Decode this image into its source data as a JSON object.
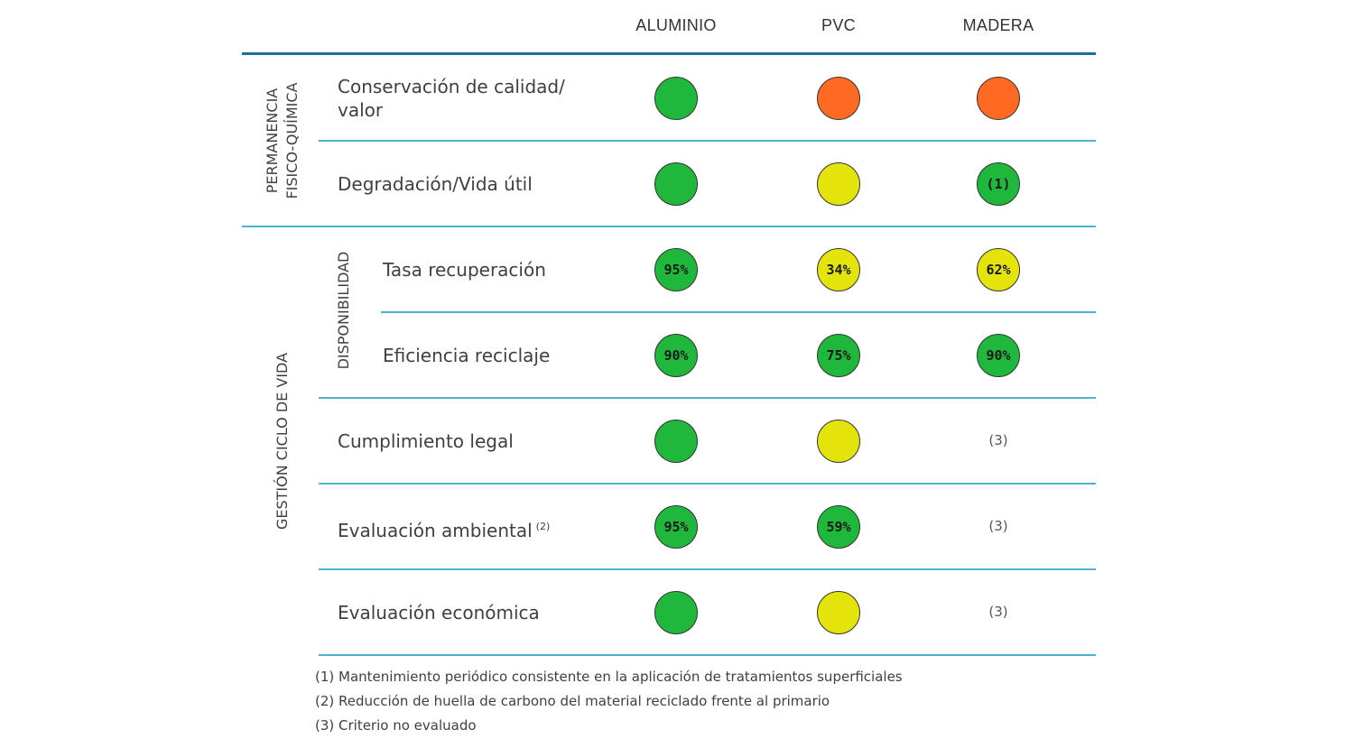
{
  "chart_data": {
    "type": "table",
    "columns": [
      "ALUMINIO",
      "PVC",
      "MADERA"
    ],
    "groups": [
      {
        "label_lines": [
          "PERMANENCIA",
          "FISICO-QUÍMICA"
        ],
        "subgroups": [
          {
            "label": "",
            "rows": [
              {
                "label_lines": [
                  "Conservación de calidad/",
                  "valor"
                ],
                "sup": "",
                "cells": [
                  {
                    "color": "green",
                    "text": ""
                  },
                  {
                    "color": "orange",
                    "text": ""
                  },
                  {
                    "color": "orange",
                    "text": ""
                  }
                ]
              },
              {
                "label_lines": [
                  "Degradación/Vida útil"
                ],
                "sup": "",
                "cells": [
                  {
                    "color": "green",
                    "text": ""
                  },
                  {
                    "color": "yellow",
                    "text": ""
                  },
                  {
                    "color": "green",
                    "text": "(1)"
                  }
                ]
              }
            ]
          }
        ]
      },
      {
        "label_lines": [
          "GESTIÓN CICLO DE VIDA"
        ],
        "subgroups": [
          {
            "label": "DISPONIBILIDAD",
            "rows": [
              {
                "label_lines": [
                  "Tasa recuperación"
                ],
                "sup": "",
                "cells": [
                  {
                    "color": "green",
                    "text": "95%"
                  },
                  {
                    "color": "yellow",
                    "text": "34%"
                  },
                  {
                    "color": "yellow",
                    "text": "62%"
                  }
                ]
              },
              {
                "label_lines": [
                  "Eficiencia reciclaje"
                ],
                "sup": "",
                "cells": [
                  {
                    "color": "green",
                    "text": "90%"
                  },
                  {
                    "color": "green",
                    "text": "75%"
                  },
                  {
                    "color": "green",
                    "text": "90%"
                  }
                ]
              }
            ]
          },
          {
            "label": "",
            "rows": [
              {
                "label_lines": [
                  "Cumplimiento legal"
                ],
                "sup": "",
                "cells": [
                  {
                    "color": "green",
                    "text": ""
                  },
                  {
                    "color": "yellow",
                    "text": ""
                  },
                  {
                    "color": "none",
                    "text": "(3)"
                  }
                ]
              },
              {
                "label_lines": [
                  "Evaluación ambiental"
                ],
                "sup": "(2)",
                "cells": [
                  {
                    "color": "green",
                    "text": "95%"
                  },
                  {
                    "color": "green",
                    "text": "59%"
                  },
                  {
                    "color": "none",
                    "text": "(3)"
                  }
                ]
              },
              {
                "label_lines": [
                  "Evaluación económica"
                ],
                "sup": "",
                "cells": [
                  {
                    "color": "green",
                    "text": ""
                  },
                  {
                    "color": "yellow",
                    "text": ""
                  },
                  {
                    "color": "none",
                    "text": "(3)"
                  }
                ]
              }
            ]
          }
        ]
      }
    ],
    "footnotes": [
      "(1) Mantenimiento periódico consistente en la aplicación de tratamientos superficiales",
      "(2) Reducción de huella de carbono del material reciclado frente al primario",
      "(3) Criterio no evaluado"
    ],
    "colors": {
      "green": "#1fb83c",
      "yellow": "#e4e40c",
      "orange": "#ff6a22",
      "line": "#4cb4d2",
      "header_line": "#1c6f98"
    }
  }
}
